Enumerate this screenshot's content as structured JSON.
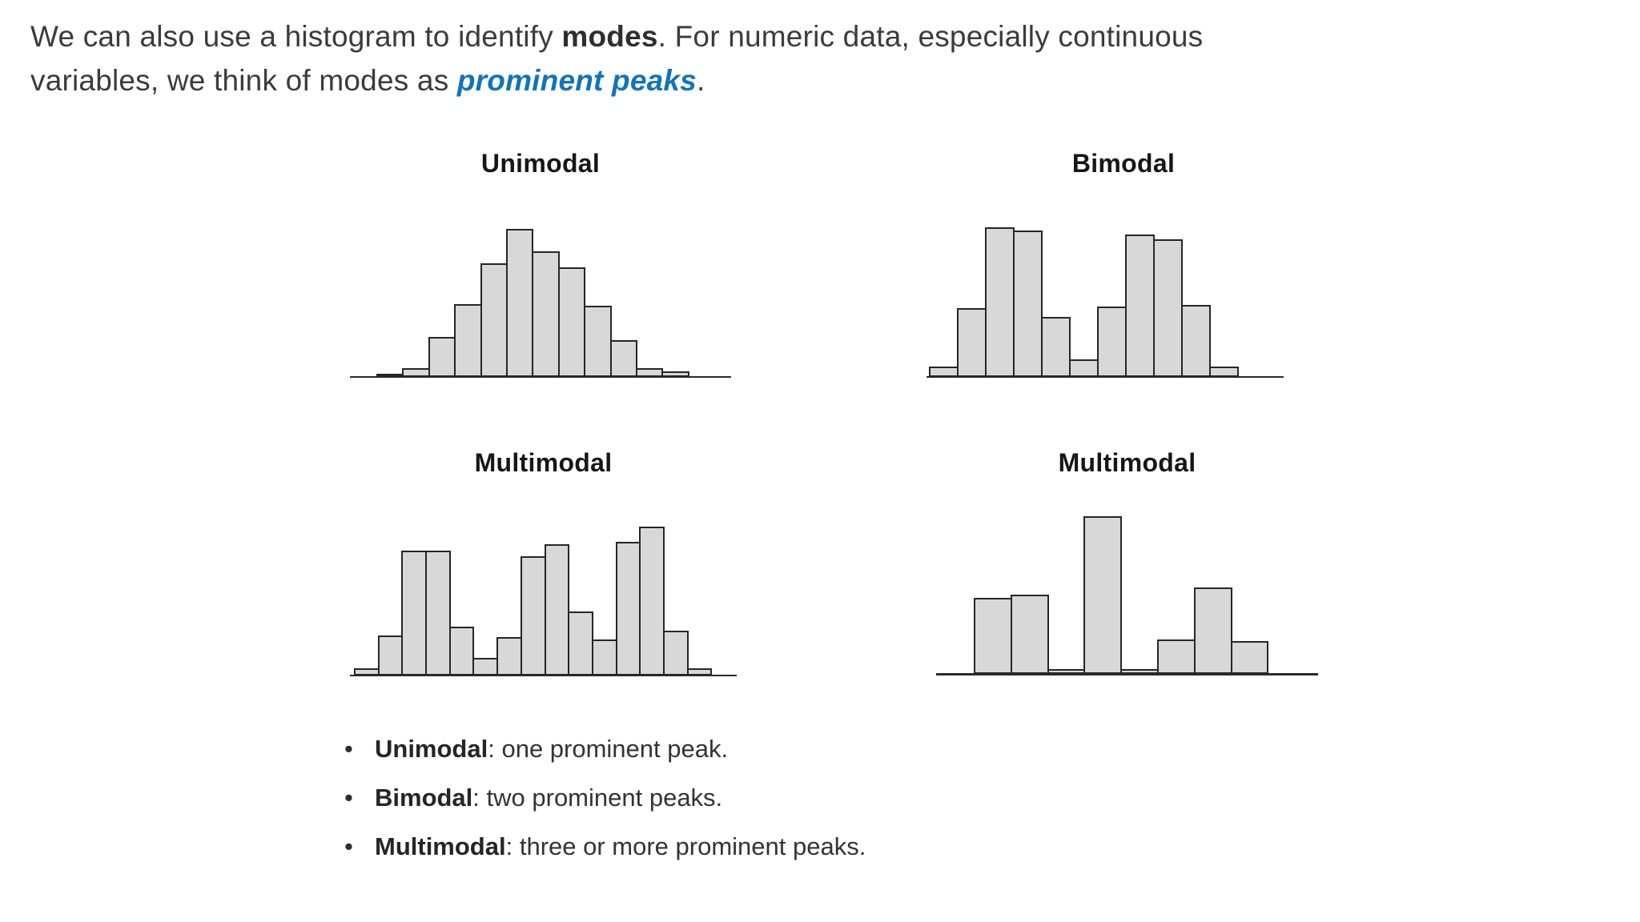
{
  "intro": {
    "line1_pre": "We can also use a histogram to identify ",
    "line1_bold": "modes",
    "line1_post": ". For numeric data, especially continuous",
    "line2_pre": "variables, we think of modes as ",
    "line2_emph": "prominent peaks",
    "line2_post": "."
  },
  "colors": {
    "emphasis_blue": "#1173bb",
    "bar_fill": "#d8d8d8",
    "bar_stroke": "#262626",
    "axis": "#2b2b2b",
    "text": "#3b3b3b"
  },
  "chart_data": [
    {
      "type": "bar",
      "title": "Unimodal",
      "values": [
        2,
        6,
        27,
        49,
        77,
        100,
        85,
        74,
        48,
        25,
        6,
        4
      ],
      "ylim": [
        0,
        100
      ],
      "grid": false,
      "axis_labels": "none",
      "legend": "none"
    },
    {
      "type": "bar",
      "title": "Bimodal",
      "values": [
        7,
        46,
        100,
        98,
        40,
        12,
        47,
        95,
        92,
        48,
        7
      ],
      "ylim": [
        0,
        100
      ],
      "grid": false,
      "axis_labels": "none",
      "legend": "none"
    },
    {
      "type": "bar",
      "title": "Multimodal",
      "values": [
        5,
        27,
        84,
        84,
        33,
        12,
        26,
        80,
        88,
        43,
        24,
        90,
        100,
        30,
        5
      ],
      "ylim": [
        0,
        100
      ],
      "grid": false,
      "axis_labels": "none",
      "legend": "none"
    },
    {
      "type": "bar",
      "title": "Multimodal",
      "values": [
        48,
        50,
        3,
        100,
        3,
        22,
        55,
        21
      ],
      "ylim": [
        0,
        100
      ],
      "grid": false,
      "axis_labels": "none",
      "legend": "none"
    }
  ],
  "bullets": [
    {
      "term": "Unimodal",
      "rest": ": one prominent peak."
    },
    {
      "term": "Bimodal",
      "rest": ": two prominent peaks."
    },
    {
      "term": "Multimodal",
      "rest": ": three or more prominent peaks."
    }
  ]
}
